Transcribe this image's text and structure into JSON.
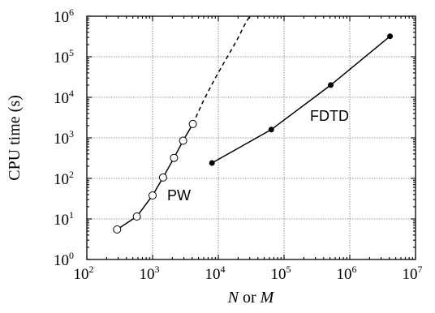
{
  "chart_data": {
    "type": "line",
    "xlabel": {
      "var1": "N",
      "conj": " or ",
      "var2": "M"
    },
    "ylabel": "CPU time (s)",
    "xscale": "log",
    "yscale": "log",
    "xlim": [
      100,
      10000000
    ],
    "ylim": [
      1,
      1000000
    ],
    "x_ticks": [
      {
        "base": "10",
        "exp": "2"
      },
      {
        "base": "10",
        "exp": "3"
      },
      {
        "base": "10",
        "exp": "4"
      },
      {
        "base": "10",
        "exp": "5"
      },
      {
        "base": "10",
        "exp": "6"
      },
      {
        "base": "10",
        "exp": "7"
      }
    ],
    "y_ticks": [
      {
        "base": "10",
        "exp": "0"
      },
      {
        "base": "10",
        "exp": "1"
      },
      {
        "base": "10",
        "exp": "2"
      },
      {
        "base": "10",
        "exp": "3"
      },
      {
        "base": "10",
        "exp": "4"
      },
      {
        "base": "10",
        "exp": "5"
      },
      {
        "base": "10",
        "exp": "6"
      }
    ],
    "grid": true,
    "series": [
      {
        "name": "PW",
        "marker": "open-circle",
        "x": [
          289,
          576,
          1000,
          1444,
          2116,
          2916,
          4096
        ],
        "y": [
          5.5,
          11.5,
          38,
          105,
          320,
          850,
          2200
        ],
        "extrapolation": {
          "style": "dashed",
          "x": [
            4096,
            6000,
            9000,
            13000,
            19000,
            25000,
            30000
          ],
          "y": [
            2200,
            8500,
            30000,
            85000,
            250000,
            600000,
            1000000
          ]
        }
      },
      {
        "name": "FDTD",
        "marker": "filled-circle",
        "x": [
          8000,
          64000,
          512000,
          4096000
        ],
        "y": [
          240,
          1600,
          20000,
          320000
        ]
      }
    ]
  }
}
